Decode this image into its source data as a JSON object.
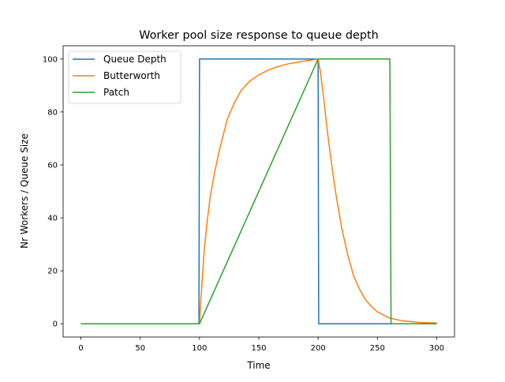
{
  "chart_data": {
    "type": "line",
    "title": "Worker pool size response to queue depth",
    "xlabel": "Time",
    "ylabel": "Nr Workers / Queue Size",
    "xlim": [
      -15,
      315
    ],
    "ylim": [
      -5,
      105
    ],
    "xticks": [
      0,
      50,
      100,
      150,
      200,
      250,
      300
    ],
    "yticks": [
      0,
      20,
      40,
      60,
      80,
      100
    ],
    "grid": false,
    "legend_position": "upper-left",
    "series": [
      {
        "name": "Queue Depth",
        "color": "#1f77b4",
        "x": [
          0,
          99.5,
          100,
          200,
          200.5,
          300
        ],
        "y": [
          0,
          0,
          100,
          100,
          0,
          0
        ]
      },
      {
        "name": "Butterworth",
        "color": "#ff7f0e",
        "x": [
          0,
          100,
          101,
          102.5,
          104,
          106.3,
          109,
          112.9,
          117,
          123.5,
          130,
          135,
          142,
          150,
          158,
          165,
          175,
          185,
          200,
          202,
          205,
          208,
          210,
          213,
          215,
          220,
          225,
          230,
          235,
          240,
          245,
          250,
          260,
          270,
          285,
          300
        ],
        "y": [
          0,
          0,
          8,
          18,
          28,
          38,
          48,
          57.5,
          66,
          77.4,
          84,
          88,
          91.5,
          94,
          95.8,
          97,
          98.2,
          99,
          100,
          95,
          84,
          72,
          65,
          55,
          49,
          36,
          26,
          18,
          13,
          9,
          6.5,
          4.5,
          2.2,
          1.2,
          0.5,
          0.3
        ]
      },
      {
        "name": "Patch",
        "color": "#2ca02c",
        "x": [
          0,
          100,
          200,
          260.5,
          261.5,
          300
        ],
        "y": [
          0,
          0,
          100,
          100,
          0,
          0
        ]
      }
    ]
  }
}
